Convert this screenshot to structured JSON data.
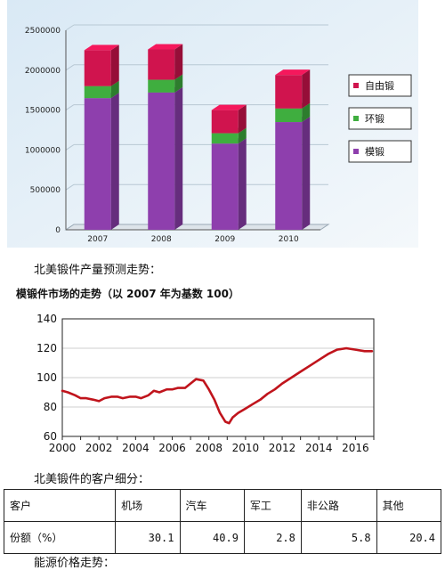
{
  "chart_data": [
    {
      "type": "bar",
      "stacked": true,
      "categories": [
        "2007",
        "2008",
        "2009",
        "2010"
      ],
      "series": [
        {
          "name": "模锻",
          "color": "#8e3fad",
          "values": [
            1650000,
            1720000,
            1080000,
            1350000
          ]
        },
        {
          "name": "环锻",
          "color": "#3fae3f",
          "values": [
            150000,
            160000,
            130000,
            170000
          ]
        },
        {
          "name": "自由锻",
          "color": "#d0144e",
          "values": [
            450000,
            380000,
            290000,
            420000
          ]
        }
      ],
      "yticks": [
        "0",
        "500000",
        "1000000",
        "1500000",
        "2000000",
        "2500000"
      ],
      "ylim": [
        0,
        2500000
      ],
      "grid": true,
      "legend_position": "right"
    },
    {
      "type": "line",
      "title": "模锻件市场的走势（以 2007 年为基数 100）",
      "xticks": [
        "2000",
        "2002",
        "2004",
        "2006",
        "2008",
        "2010",
        "2012",
        "2014",
        "2016"
      ],
      "yticks": [
        "60",
        "80",
        "100",
        "120",
        "140"
      ],
      "xlim": [
        2000,
        2017
      ],
      "ylim": [
        60,
        140
      ],
      "grid": true,
      "series": [
        {
          "color": "#c0141c",
          "x": [
            2000.0,
            2000.3,
            2000.7,
            2001.0,
            2001.3,
            2001.7,
            2002.0,
            2002.3,
            2002.7,
            2003.0,
            2003.3,
            2003.7,
            2004.0,
            2004.3,
            2004.7,
            2005.0,
            2005.3,
            2005.7,
            2006.0,
            2006.3,
            2006.7,
            2007.0,
            2007.3,
            2007.7,
            2008.0,
            2008.3,
            2008.6,
            2008.9,
            2009.1,
            2009.3,
            2009.6,
            2010.0,
            2010.4,
            2010.8,
            2011.2,
            2011.6,
            2012.0,
            2012.5,
            2013.0,
            2013.5,
            2014.0,
            2014.5,
            2015.0,
            2015.5,
            2016.0,
            2016.5,
            2016.9
          ],
          "y": [
            91,
            90,
            88,
            86,
            86,
            85,
            84,
            86,
            87,
            87,
            86,
            87,
            87,
            86,
            88,
            91,
            90,
            92,
            92,
            93,
            93,
            96,
            99,
            98,
            92,
            85,
            76,
            70,
            69,
            73,
            76,
            79,
            82,
            85,
            89,
            92,
            96,
            100,
            104,
            108,
            112,
            116,
            119,
            120,
            119,
            118,
            118
          ]
        }
      ]
    }
  ],
  "captions": {
    "forecast": "北美锻件产量预测走势：",
    "customers": "北美锻件的客户细分：",
    "energy": "能源价格走势："
  },
  "table": {
    "headers": [
      "客户",
      "机场",
      "汽车",
      "军工",
      "非公路",
      "其他"
    ],
    "row_label": "份额（%）",
    "values": [
      "30.1",
      "40.9",
      "2.8",
      "5.8",
      "20.4"
    ]
  }
}
